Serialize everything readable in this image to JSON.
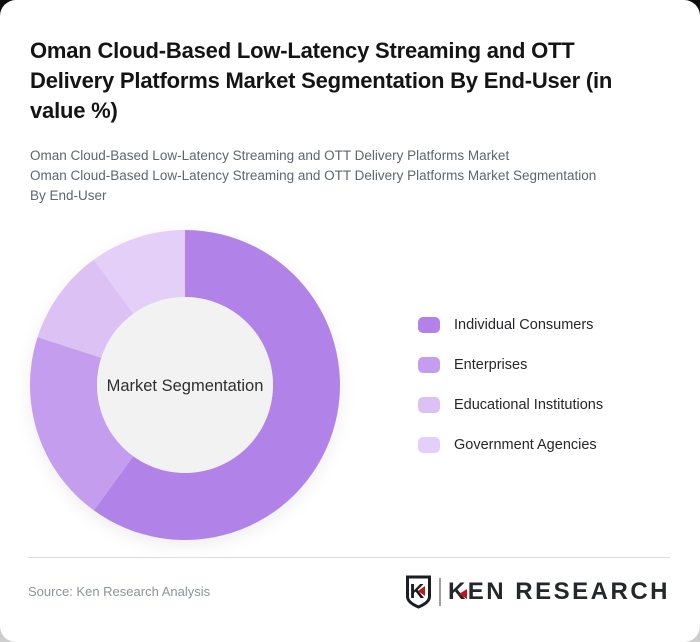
{
  "header": {
    "title": "Oman Cloud-Based Low-Latency Streaming and OTT Delivery Platforms Market Segmentation By End-User (in value %)",
    "subtitle_line1": "Oman Cloud-Based Low-Latency Streaming and OTT Delivery Platforms Market",
    "subtitle_line2": "Oman Cloud-Based Low-Latency Streaming and OTT Delivery Platforms Market Segmentation By End-User"
  },
  "chart_data": {
    "type": "pie",
    "subtype": "donut",
    "center_label": "Market Segmentation",
    "unit": "value %",
    "categories": [
      "Individual Consumers",
      "Enterprises",
      "Educational Institutions",
      "Government Agencies"
    ],
    "values": [
      60,
      20,
      10,
      10
    ],
    "colors": [
      "#b182e8",
      "#c49dee",
      "#dcc2f4",
      "#e3cff7"
    ],
    "center_fill": "#f2f2f2",
    "legend_position": "right",
    "start_angle_deg": 0,
    "direction": "clockwise"
  },
  "footer": {
    "source": "Source: Ken Research Analysis",
    "logo": {
      "badge_letter": "K",
      "name_initial": "K",
      "name_rest": "EN RESEARCH",
      "brand_red": "#c3161c",
      "brand_dark": "#24272b"
    }
  }
}
